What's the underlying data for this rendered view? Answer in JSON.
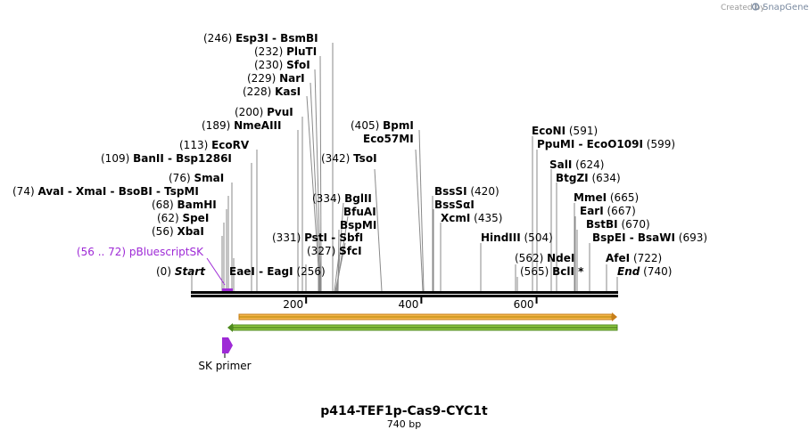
{
  "header": {
    "created_by": "Created by",
    "brand": "SnapGene"
  },
  "map": {
    "name": "p414-TEF1p-Cas9-CYC1t",
    "length_label": "740 bp",
    "length": 740,
    "ticks": [
      200,
      400,
      600
    ],
    "sites": [
      {
        "pos": "(0)",
        "names": [
          "Start"
        ],
        "italic": true
      },
      {
        "pos": "(56)",
        "names": [
          "XbaI"
        ]
      },
      {
        "pos": "(62)",
        "names": [
          "SpeI"
        ]
      },
      {
        "pos": "(68)",
        "names": [
          "BamHI"
        ]
      },
      {
        "pos": "(74)",
        "names": [
          "AvaI",
          "XmaI",
          "BsoBI",
          "TspMI"
        ]
      },
      {
        "pos": "(76)",
        "names": [
          "SmaI"
        ]
      },
      {
        "pos": "(109)",
        "names": [
          "BanII",
          "Bsp1286I"
        ]
      },
      {
        "pos": "(113)",
        "names": [
          "EcoRV"
        ]
      },
      {
        "pos": "(189)",
        "names": [
          "NmeAIII"
        ]
      },
      {
        "pos": "(200)",
        "names": [
          "PvuI"
        ]
      },
      {
        "pos": "(228)",
        "names": [
          "KasI"
        ]
      },
      {
        "pos": "(229)",
        "names": [
          "NarI"
        ]
      },
      {
        "pos": "(230)",
        "names": [
          "SfoI"
        ]
      },
      {
        "pos": "(232)",
        "names": [
          "PluTI"
        ]
      },
      {
        "pos": "(246)",
        "names": [
          "Esp3I",
          "BsmBI"
        ]
      },
      {
        "pos": "(256)",
        "names": [
          "EaeI",
          "EagI"
        ]
      },
      {
        "pos": "(327)",
        "names": [
          "SfcI"
        ]
      },
      {
        "pos": "(331)",
        "names": [
          "PstI",
          "SbfI"
        ]
      },
      {
        "pos": "(334)",
        "names": [
          "BglII"
        ]
      },
      {
        "pos": "",
        "names": [
          "BfuAI"
        ]
      },
      {
        "pos": "",
        "names": [
          "BspMI"
        ]
      },
      {
        "pos": "(342)",
        "names": [
          "TsoI"
        ]
      },
      {
        "pos": "(405)",
        "names": [
          "BpmI"
        ]
      },
      {
        "pos": "",
        "names": [
          "Eco57MI"
        ]
      },
      {
        "pos": "(420)",
        "names": [
          "BssSI"
        ]
      },
      {
        "pos": "",
        "names": [
          "BssSαI"
        ]
      },
      {
        "pos": "(435)",
        "names": [
          "XcmI"
        ]
      },
      {
        "pos": "(504)",
        "names": [
          "HindIII"
        ]
      },
      {
        "pos": "(562)",
        "names": [
          "NdeI"
        ]
      },
      {
        "pos": "(565)",
        "names": [
          "BclI *"
        ]
      },
      {
        "pos": "(591)",
        "names": [
          "EcoNI"
        ]
      },
      {
        "pos": "(599)",
        "names": [
          "PpuMI",
          "EcoO109I"
        ]
      },
      {
        "pos": "(624)",
        "names": [
          "SalI"
        ]
      },
      {
        "pos": "(634)",
        "names": [
          "BtgZI"
        ]
      },
      {
        "pos": "(665)",
        "names": [
          "MmeI"
        ]
      },
      {
        "pos": "(667)",
        "names": [
          "EarI"
        ]
      },
      {
        "pos": "(670)",
        "names": [
          "BstBI"
        ]
      },
      {
        "pos": "(693)",
        "names": [
          "BspEI",
          "BsaWI"
        ]
      },
      {
        "pos": "(722)",
        "names": [
          "AfeI"
        ]
      },
      {
        "pos": "(740)",
        "names": [
          "End"
        ],
        "italic": true
      }
    ],
    "features": [
      {
        "label": "(56 .. 72)  pBluescriptSK",
        "color": "#9e2ad6"
      },
      {
        "label": "SK primer",
        "color": "#9e2ad6"
      }
    ],
    "colors": {
      "feature": "#9e2ad6",
      "forward_arrow": "#f3b64a",
      "reverse_arrow": "#8cc63f",
      "backbone": "#000000"
    }
  }
}
